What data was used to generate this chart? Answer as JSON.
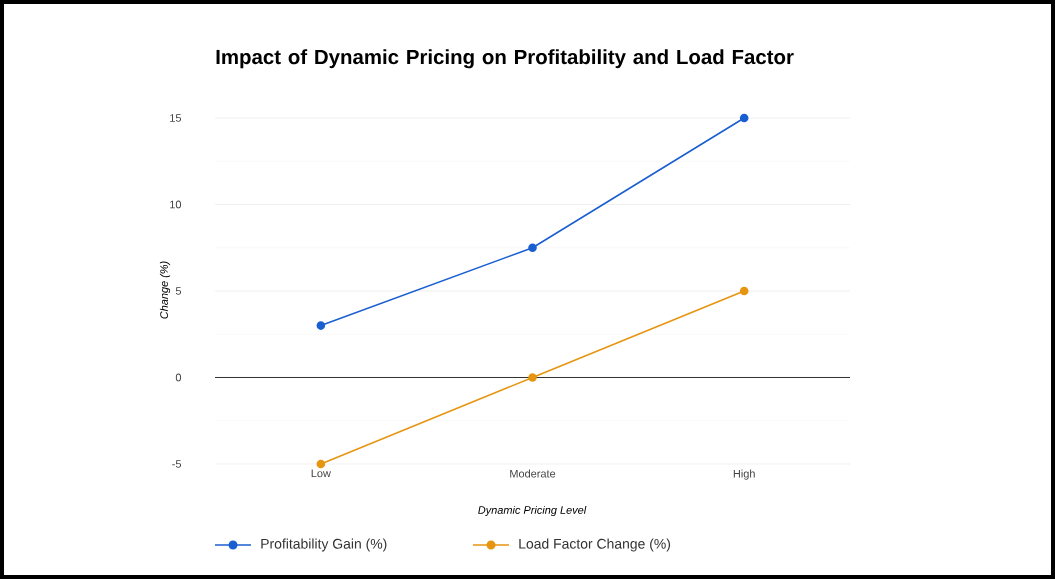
{
  "chart_data": {
    "type": "line",
    "title": "Impact of Dynamic Pricing on Profitability and Load Factor",
    "xlabel": "Dynamic Pricing Level",
    "ylabel": "Change (%)",
    "categories": [
      "Low",
      "Moderate",
      "High"
    ],
    "series": [
      {
        "name": "Profitability Gain (%)",
        "color": "#1a5fd1",
        "values": [
          3,
          7.5,
          15
        ]
      },
      {
        "name": "Load Factor Change (%)",
        "color": "#e69510",
        "values": [
          -5,
          0,
          5
        ]
      }
    ],
    "ylim": [
      -5,
      15
    ],
    "yticks": [
      -5,
      0,
      5,
      10,
      15
    ],
    "grid": "y",
    "legend": "bottom",
    "marker": "circle",
    "line_style": "solid"
  }
}
